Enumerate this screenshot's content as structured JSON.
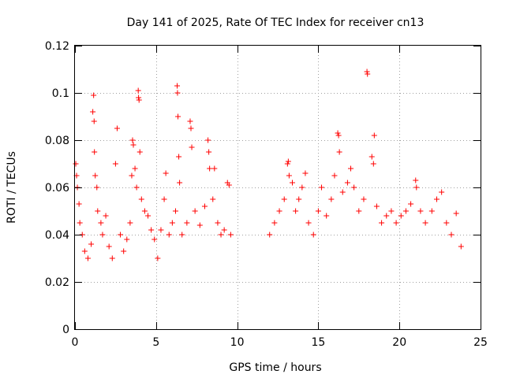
{
  "chart_data": {
    "type": "scatter",
    "title": "Day 141 of 2025, Rate Of TEC Index for receiver cn13",
    "xlabel": "GPS time / hours",
    "ylabel": "ROTI / TECUs",
    "xlim": [
      0,
      25
    ],
    "ylim": [
      0,
      0.12
    ],
    "xticks": [
      0,
      5,
      10,
      15,
      20,
      25
    ],
    "xtick_labels": [
      "0",
      "5",
      "10",
      "15",
      "20",
      "25"
    ],
    "yticks": [
      0,
      0.02,
      0.04,
      0.06,
      0.08,
      0.1,
      0.12
    ],
    "ytick_labels": [
      "0",
      "0.02",
      "0.04",
      "0.06",
      "0.08",
      "0.1",
      "0.12"
    ],
    "grid": true,
    "marker": "+",
    "color": "#ff0000",
    "series": [
      {
        "name": "ROTI",
        "data_gaps_hours": [
          [
            9.8,
            11.9
          ]
        ],
        "points": [
          [
            0.05,
            0.07
          ],
          [
            0.1,
            0.065
          ],
          [
            0.15,
            0.06
          ],
          [
            0.25,
            0.053
          ],
          [
            0.3,
            0.045
          ],
          [
            0.45,
            0.04
          ],
          [
            0.6,
            0.033
          ],
          [
            0.8,
            0.03
          ],
          [
            1.0,
            0.036
          ],
          [
            1.1,
            0.092
          ],
          [
            1.15,
            0.099
          ],
          [
            1.18,
            0.088
          ],
          [
            1.2,
            0.075
          ],
          [
            1.25,
            0.065
          ],
          [
            1.35,
            0.06
          ],
          [
            1.4,
            0.05
          ],
          [
            1.6,
            0.045
          ],
          [
            1.7,
            0.04
          ],
          [
            1.9,
            0.048
          ],
          [
            2.1,
            0.035
          ],
          [
            2.3,
            0.03
          ],
          [
            2.5,
            0.07
          ],
          [
            2.6,
            0.085
          ],
          [
            2.8,
            0.04
          ],
          [
            3.0,
            0.033
          ],
          [
            3.2,
            0.038
          ],
          [
            3.4,
            0.045
          ],
          [
            3.5,
            0.065
          ],
          [
            3.55,
            0.08
          ],
          [
            3.6,
            0.078
          ],
          [
            3.7,
            0.068
          ],
          [
            3.8,
            0.06
          ],
          [
            3.9,
            0.101
          ],
          [
            3.92,
            0.098
          ],
          [
            3.95,
            0.097
          ],
          [
            4.0,
            0.075
          ],
          [
            4.1,
            0.055
          ],
          [
            4.3,
            0.05
          ],
          [
            4.5,
            0.048
          ],
          [
            4.7,
            0.042
          ],
          [
            4.9,
            0.038
          ],
          [
            5.1,
            0.03
          ],
          [
            5.3,
            0.042
          ],
          [
            5.5,
            0.055
          ],
          [
            5.6,
            0.066
          ],
          [
            5.8,
            0.04
          ],
          [
            6.0,
            0.045
          ],
          [
            6.2,
            0.05
          ],
          [
            6.3,
            0.103
          ],
          [
            6.32,
            0.1
          ],
          [
            6.35,
            0.09
          ],
          [
            6.4,
            0.073
          ],
          [
            6.45,
            0.062
          ],
          [
            6.6,
            0.04
          ],
          [
            6.9,
            0.045
          ],
          [
            7.1,
            0.088
          ],
          [
            7.15,
            0.085
          ],
          [
            7.2,
            0.077
          ],
          [
            7.4,
            0.05
          ],
          [
            7.7,
            0.044
          ],
          [
            8.0,
            0.052
          ],
          [
            8.2,
            0.08
          ],
          [
            8.25,
            0.075
          ],
          [
            8.3,
            0.068
          ],
          [
            8.5,
            0.055
          ],
          [
            8.6,
            0.068
          ],
          [
            8.8,
            0.045
          ],
          [
            9.0,
            0.04
          ],
          [
            9.2,
            0.042
          ],
          [
            9.4,
            0.062
          ],
          [
            9.5,
            0.061
          ],
          [
            9.6,
            0.04
          ],
          [
            12.0,
            0.04
          ],
          [
            12.3,
            0.045
          ],
          [
            12.6,
            0.05
          ],
          [
            12.9,
            0.055
          ],
          [
            13.1,
            0.07
          ],
          [
            13.15,
            0.071
          ],
          [
            13.2,
            0.065
          ],
          [
            13.4,
            0.062
          ],
          [
            13.6,
            0.05
          ],
          [
            13.8,
            0.055
          ],
          [
            14.0,
            0.06
          ],
          [
            14.2,
            0.066
          ],
          [
            14.4,
            0.045
          ],
          [
            14.7,
            0.04
          ],
          [
            15.0,
            0.05
          ],
          [
            15.2,
            0.06
          ],
          [
            15.5,
            0.048
          ],
          [
            15.8,
            0.055
          ],
          [
            16.0,
            0.065
          ],
          [
            16.2,
            0.083
          ],
          [
            16.25,
            0.082
          ],
          [
            16.3,
            0.075
          ],
          [
            16.5,
            0.058
          ],
          [
            16.8,
            0.062
          ],
          [
            17.0,
            0.068
          ],
          [
            17.2,
            0.06
          ],
          [
            17.5,
            0.05
          ],
          [
            17.8,
            0.055
          ],
          [
            18.0,
            0.109
          ],
          [
            18.03,
            0.108
          ],
          [
            18.3,
            0.073
          ],
          [
            18.4,
            0.07
          ],
          [
            18.45,
            0.082
          ],
          [
            18.6,
            0.052
          ],
          [
            18.9,
            0.045
          ],
          [
            19.2,
            0.048
          ],
          [
            19.5,
            0.05
          ],
          [
            19.8,
            0.045
          ],
          [
            20.1,
            0.048
          ],
          [
            20.4,
            0.05
          ],
          [
            20.7,
            0.053
          ],
          [
            21.0,
            0.063
          ],
          [
            21.05,
            0.06
          ],
          [
            21.3,
            0.05
          ],
          [
            21.6,
            0.045
          ],
          [
            22.0,
            0.05
          ],
          [
            22.3,
            0.055
          ],
          [
            22.6,
            0.058
          ],
          [
            22.9,
            0.045
          ],
          [
            23.2,
            0.04
          ],
          [
            23.5,
            0.049
          ],
          [
            23.8,
            0.035
          ]
        ]
      }
    ]
  }
}
